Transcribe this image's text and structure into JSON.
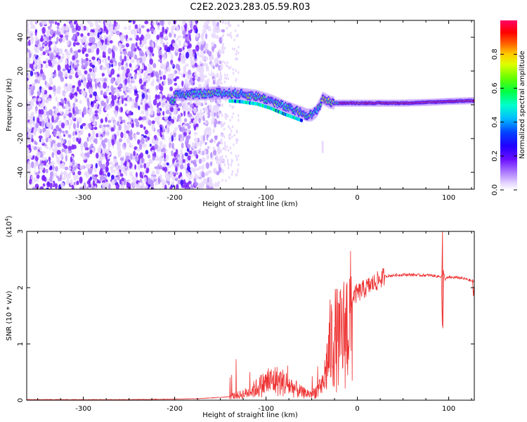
{
  "figure": {
    "title": "C2E2.2023.283.05.59.R03"
  },
  "chart_data": [
    {
      "type": "heatmap",
      "title": "C2E2.2023.283.05.59.R03",
      "xlabel": "Height of straight line (km)",
      "ylabel": "Frequency (Hz)",
      "xlim": [
        -362,
        128
      ],
      "ylim": [
        -50,
        50
      ],
      "x_ticks": [
        -300,
        -200,
        -100,
        0,
        100
      ],
      "y_ticks": [
        -40,
        -20,
        0,
        20,
        40
      ],
      "grid": false,
      "colorbar": {
        "label": "Normalized spectral amplitude",
        "range": [
          0,
          1
        ],
        "ticks": [
          0.0,
          0.2,
          0.4,
          0.6,
          0.8
        ],
        "colormap": [
          "#ffffff",
          "#e8d8ff",
          "#b68cff",
          "#7a1fff",
          "#3300ff",
          "#0000ff",
          "#00bfff",
          "#00ffcc",
          "#00ff44",
          "#99ff00",
          "#ffff00",
          "#ff8800",
          "#ff0000",
          "#ff0066"
        ]
      },
      "ridge": {
        "x": [
          -200,
          -170,
          -150,
          -130,
          -110,
          -95,
          -80,
          -70,
          -60,
          -55,
          -50,
          -45,
          -40,
          -38,
          -35,
          -30,
          -25,
          -20,
          -10,
          0,
          20,
          50,
          80,
          100,
          128
        ],
        "y": [
          6,
          6.5,
          7,
          6.5,
          5,
          2.5,
          -1,
          -3,
          -5,
          -6,
          -6,
          -4,
          1,
          4,
          3,
          1.5,
          1,
          1,
          1,
          1,
          1,
          1,
          1.5,
          2,
          2.5
        ]
      }
    },
    {
      "type": "line",
      "xlabel": "Height of straight line (km)",
      "ylabel": "SNR (10 * v/v)",
      "y_scale_label": "(x10",
      "y_scale_exponent": "4",
      "y_scale_suffix": ")",
      "xlim": [
        -362,
        128
      ],
      "ylim": [
        0,
        3
      ],
      "x_ticks": [
        -300,
        -200,
        -100,
        0,
        100
      ],
      "y_ticks": [
        0,
        1,
        2,
        3
      ],
      "grid": false,
      "color": "#ee3333",
      "series": [
        {
          "x": [
            -362,
            -300,
            -250,
            -200,
            -170,
            -150,
            -130,
            -120,
            -110,
            -100,
            -90,
            -80,
            -70,
            -60,
            -50,
            -40,
            -35,
            -30,
            -25,
            -20,
            -15,
            -10,
            -5,
            0,
            10,
            20,
            30,
            40,
            50,
            60,
            70,
            80,
            88,
            92,
            93,
            94,
            96,
            100,
            110,
            120,
            128
          ],
          "values": [
            0.01,
            0.01,
            0.01,
            0.02,
            0.03,
            0.05,
            0.08,
            0.12,
            0.2,
            0.28,
            0.32,
            0.28,
            0.2,
            0.12,
            0.1,
            0.2,
            0.6,
            1.2,
            1.4,
            1.3,
            1.5,
            1.75,
            1.85,
            1.9,
            2.0,
            2.1,
            2.2,
            2.22,
            2.23,
            2.23,
            2.22,
            2.22,
            2.2,
            2.2,
            1.3,
            2.3,
            2.15,
            2.18,
            2.18,
            2.15,
            2.1
          ]
        }
      ]
    }
  ]
}
